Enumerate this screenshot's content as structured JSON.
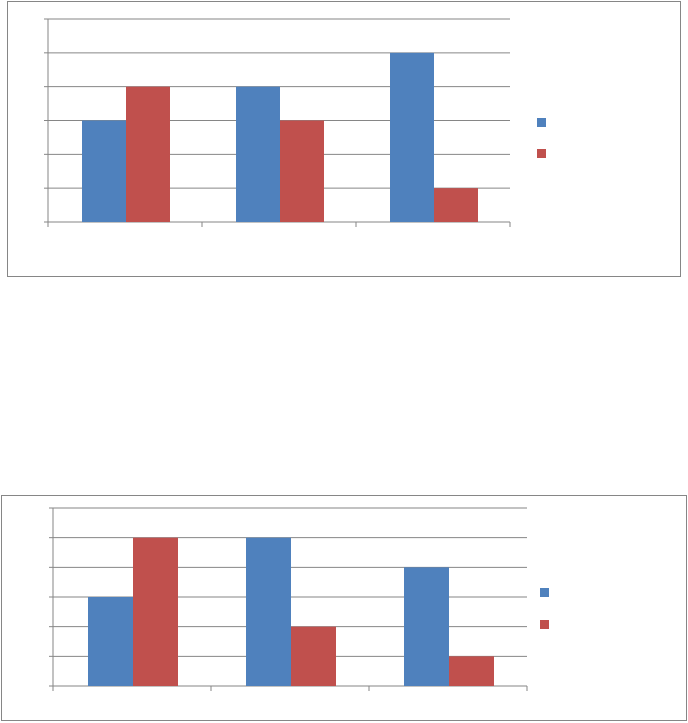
{
  "chart_data": [
    {
      "type": "bar",
      "categories": [
        null,
        null,
        null
      ],
      "series": [
        {
          "color": "#4f81bd",
          "values": [
            3,
            4,
            5
          ]
        },
        {
          "color": "#c0504d",
          "values": [
            4,
            3,
            1
          ]
        }
      ],
      "ylim": [
        0,
        6
      ],
      "yticks": [
        0,
        1,
        2,
        3,
        4,
        5,
        6
      ],
      "grid": true,
      "legend": "right"
    },
    {
      "type": "bar",
      "categories": [
        null,
        null,
        null
      ],
      "series": [
        {
          "color": "#4f81bd",
          "values": [
            3,
            5,
            4
          ]
        },
        {
          "color": "#c0504d",
          "values": [
            5,
            2,
            1
          ]
        }
      ],
      "ylim": [
        0,
        6
      ],
      "yticks": [
        0,
        1,
        2,
        3,
        4,
        5,
        6
      ],
      "grid": true,
      "legend": "right"
    }
  ]
}
